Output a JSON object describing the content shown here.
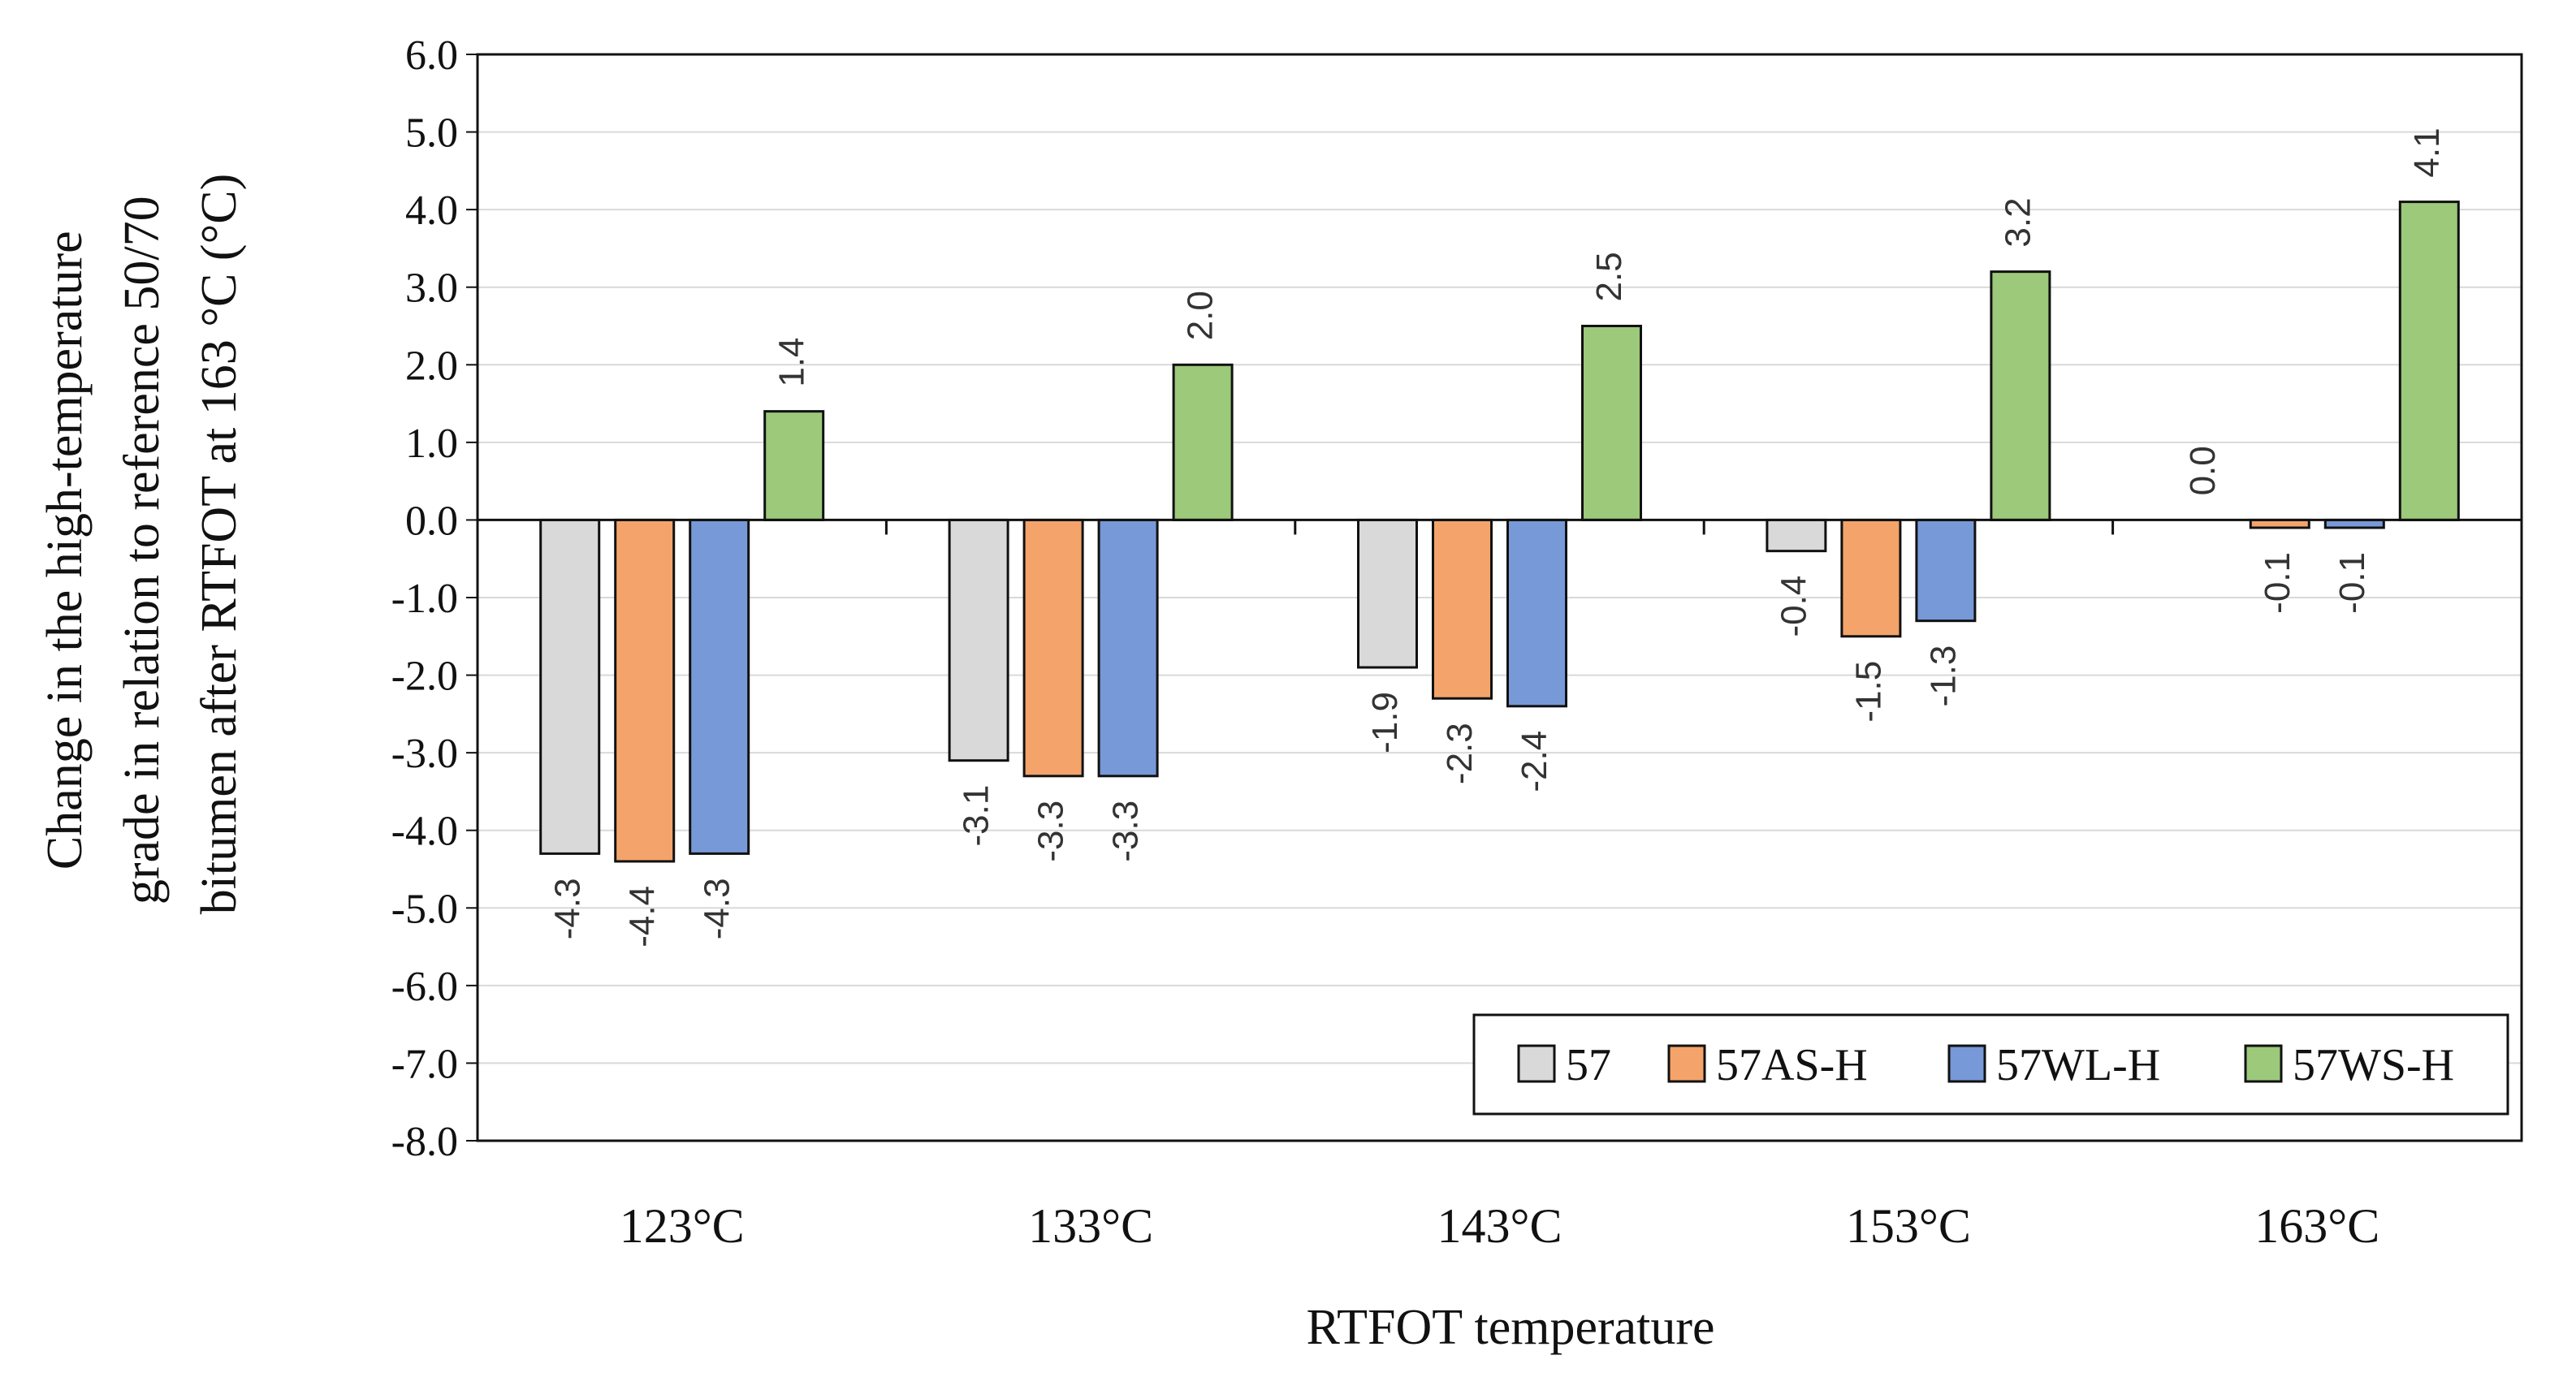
{
  "chart_data": {
    "type": "bar",
    "title": "",
    "xlabel": "RTFOT temperature",
    "ylabel_lines": [
      "Change in the high-temperature",
      "grade in relation to reference 50/70",
      "bitumen after RTFOT at 163 °C  (°C)"
    ],
    "ylim": [
      -8.0,
      6.0
    ],
    "ytick_step": 1.0,
    "categories": [
      "123°C",
      "133°C",
      "143°C",
      "153°C",
      "163°C"
    ],
    "grid": true,
    "legend_position": "bottom-right",
    "series": [
      {
        "name": "57",
        "color": "#d9d9d9",
        "values": [
          -4.3,
          -3.1,
          -1.9,
          -0.4,
          0.0
        ],
        "labels": [
          "-4.3",
          "-3.1",
          "-1.9",
          "-0.4",
          "0.0"
        ]
      },
      {
        "name": "57AS-H",
        "color": "#f4a46a",
        "values": [
          -4.4,
          -3.3,
          -2.3,
          -1.5,
          -0.1
        ],
        "labels": [
          "-4.4",
          "-3.3",
          "-2.3",
          "-1.5",
          "-0.1"
        ]
      },
      {
        "name": "57WL-H",
        "color": "#7799d8",
        "values": [
          -4.3,
          -3.3,
          -2.4,
          -1.3,
          -0.1
        ],
        "labels": [
          "-4.3",
          "-3.3",
          "-2.4",
          "-1.3",
          "-0.1"
        ]
      },
      {
        "name": "57WS-H",
        "color": "#9cc97a",
        "values": [
          1.4,
          2.0,
          2.5,
          3.2,
          4.1
        ],
        "labels": [
          "1.4",
          "2.0",
          "2.5",
          "3.2",
          "4.1"
        ]
      }
    ]
  }
}
